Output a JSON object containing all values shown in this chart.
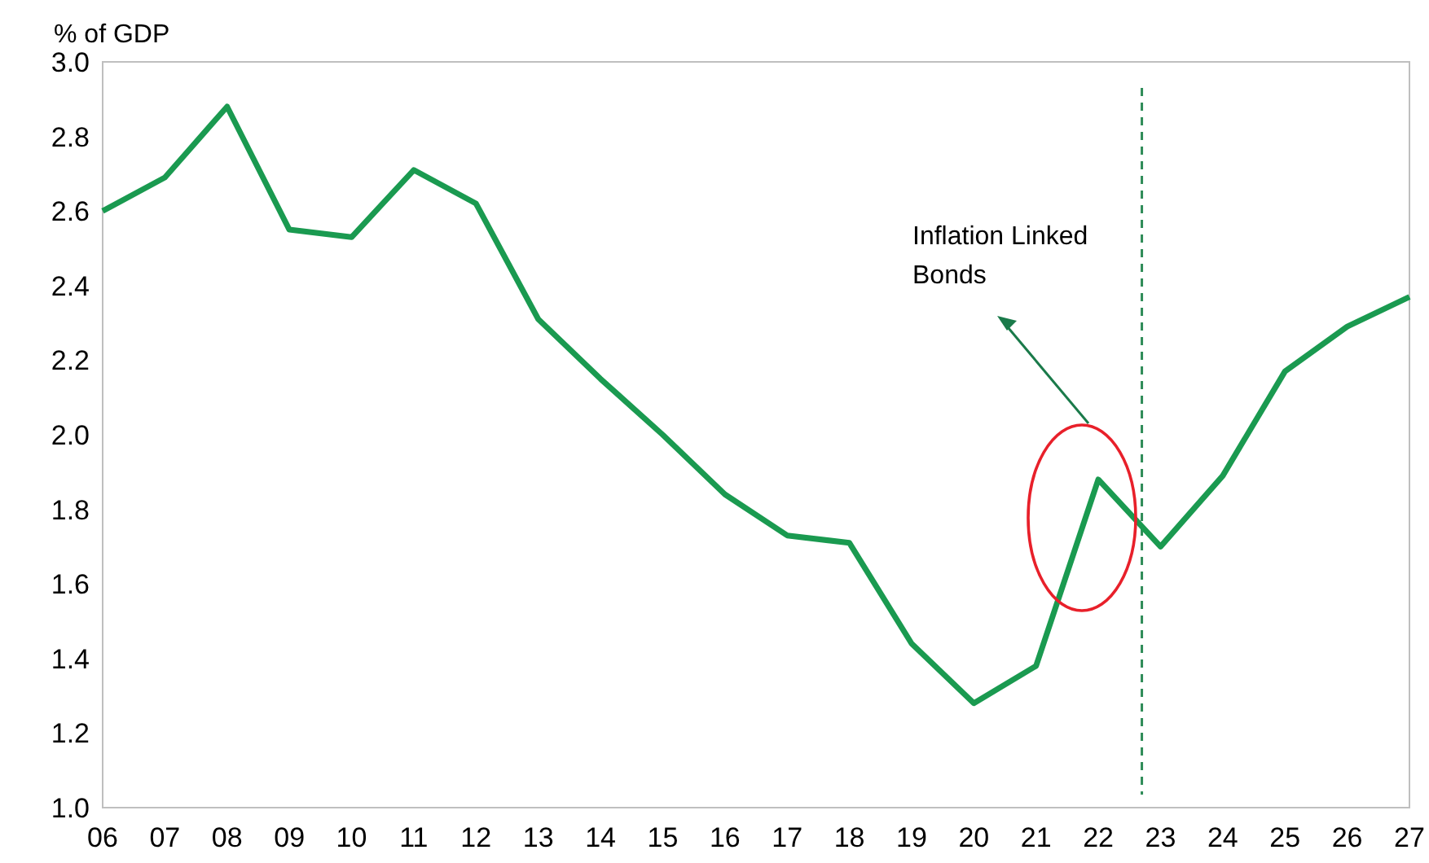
{
  "chart_data": {
    "type": "line",
    "ylabel": "% of GDP",
    "x": [
      6,
      7,
      8,
      9,
      10,
      11,
      12,
      13,
      14,
      15,
      16,
      17,
      18,
      19,
      20,
      21,
      22,
      23,
      24,
      25,
      26,
      27
    ],
    "series": [
      {
        "color": "#1a9a50",
        "values": [
          2.6,
          2.69,
          2.88,
          2.55,
          2.53,
          2.71,
          2.62,
          2.31,
          2.15,
          2.0,
          1.84,
          1.73,
          1.71,
          1.44,
          1.28,
          1.38,
          1.88,
          1.7,
          1.89,
          2.17,
          2.29,
          2.37
        ]
      }
    ],
    "xlim": [
      6,
      27
    ],
    "xticks": [
      {
        "value": 6,
        "label": "06"
      },
      {
        "value": 7,
        "label": "07"
      },
      {
        "value": 8,
        "label": "08"
      },
      {
        "value": 9,
        "label": "09"
      },
      {
        "value": 10,
        "label": "10"
      },
      {
        "value": 11,
        "label": "11"
      },
      {
        "value": 12,
        "label": "12"
      },
      {
        "value": 13,
        "label": "13"
      },
      {
        "value": 14,
        "label": "14"
      },
      {
        "value": 15,
        "label": "15"
      },
      {
        "value": 16,
        "label": "16"
      },
      {
        "value": 17,
        "label": "17"
      },
      {
        "value": 18,
        "label": "18"
      },
      {
        "value": 19,
        "label": "19"
      },
      {
        "value": 20,
        "label": "20"
      },
      {
        "value": 21,
        "label": "21"
      },
      {
        "value": 22,
        "label": "22"
      },
      {
        "value": 23,
        "label": "23"
      },
      {
        "value": 24,
        "label": "24"
      },
      {
        "value": 25,
        "label": "25"
      },
      {
        "value": 26,
        "label": "26"
      },
      {
        "value": 27,
        "label": "27"
      }
    ],
    "ylim": [
      1.0,
      3.0
    ],
    "yticks": [
      {
        "value": 1.0,
        "label": "1.0"
      },
      {
        "value": 1.2,
        "label": "1.2"
      },
      {
        "value": 1.4,
        "label": "1.4"
      },
      {
        "value": 1.6,
        "label": "1.6"
      },
      {
        "value": 1.8,
        "label": "1.8"
      },
      {
        "value": 2.0,
        "label": "2.0"
      },
      {
        "value": 2.2,
        "label": "2.2"
      },
      {
        "value": 2.4,
        "label": "2.4"
      },
      {
        "value": 2.6,
        "label": "2.6"
      },
      {
        "value": 2.8,
        "label": "2.8"
      },
      {
        "value": 3.0,
        "label": "3.0"
      }
    ],
    "ref_lines": [
      {
        "axis": "x",
        "value": 22.7,
        "color": "#2e8b57",
        "line_style": "dashed"
      }
    ],
    "annotations": [
      "Inflation Linked\nBonds"
    ],
    "grid": false
  }
}
